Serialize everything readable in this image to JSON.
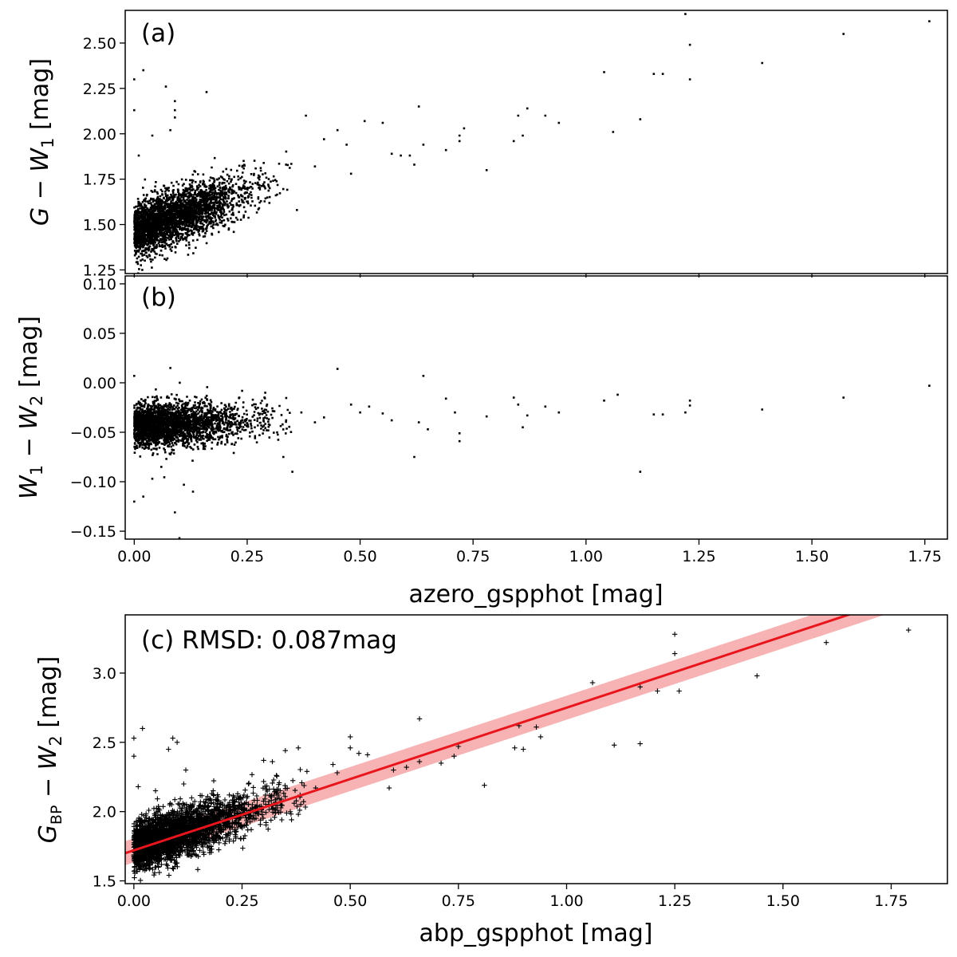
{
  "chart_data": [
    {
      "type": "scatter",
      "panel": "a",
      "label": "(a)",
      "ylabel": "G − W1 [mag]",
      "xlabel": "",
      "xlim": [
        -0.02,
        1.8
      ],
      "ylim": [
        1.23,
        2.68
      ],
      "xticks": [
        "0.00",
        "0.25",
        "0.50",
        "0.75",
        "1.00",
        "1.25",
        "1.50",
        "1.75"
      ],
      "yticks": [
        "1.25",
        "1.50",
        "1.75",
        "2.00",
        "2.25",
        "2.50"
      ],
      "bulk": {
        "x_range": [
          0,
          0.35
        ],
        "y_base": 1.46,
        "y_slope": 0.9,
        "scatter": 0.07,
        "count": 3200
      },
      "points": [
        [
          1.76,
          2.62
        ],
        [
          1.57,
          2.55
        ],
        [
          1.22,
          2.66
        ],
        [
          1.23,
          2.49
        ],
        [
          1.23,
          2.3
        ],
        [
          1.15,
          2.33
        ],
        [
          1.17,
          2.33
        ],
        [
          1.39,
          2.39
        ],
        [
          1.04,
          2.34
        ],
        [
          1.06,
          2.01
        ],
        [
          1.12,
          2.08
        ],
        [
          0.94,
          2.06
        ],
        [
          0.91,
          2.1
        ],
        [
          0.87,
          2.14
        ],
        [
          0.85,
          2.1
        ],
        [
          0.84,
          1.96
        ],
        [
          0.86,
          1.99
        ],
        [
          0.78,
          1.8
        ],
        [
          0.72,
          1.96
        ],
        [
          0.72,
          1.99
        ],
        [
          0.73,
          2.03
        ],
        [
          0.69,
          1.91
        ],
        [
          0.63,
          2.15
        ],
        [
          0.64,
          1.94
        ],
        [
          0.61,
          1.88
        ],
        [
          0.62,
          1.83
        ],
        [
          0.57,
          1.89
        ],
        [
          0.59,
          1.88
        ],
        [
          0.55,
          2.06
        ],
        [
          0.51,
          2.07
        ],
        [
          0.48,
          1.78
        ],
        [
          0.47,
          1.94
        ],
        [
          0.45,
          2.02
        ],
        [
          0.42,
          1.97
        ],
        [
          0.4,
          1.82
        ],
        [
          0.38,
          2.1
        ],
        [
          0.36,
          1.58
        ],
        [
          0.02,
          2.35
        ],
        [
          0.0,
          2.3
        ],
        [
          0.0,
          2.13
        ],
        [
          0.07,
          2.26
        ],
        [
          0.09,
          2.18
        ],
        [
          0.09,
          2.13
        ],
        [
          0.09,
          2.09
        ],
        [
          0.16,
          2.23
        ],
        [
          0.01,
          1.88
        ],
        [
          0.04,
          1.99
        ],
        [
          0.08,
          2.02
        ]
      ]
    },
    {
      "type": "scatter",
      "panel": "b",
      "label": "(b)",
      "ylabel": "W1 − W2 [mag]",
      "xlabel": "azero_gspphot [mag]",
      "xlim": [
        -0.02,
        1.8
      ],
      "ylim": [
        -0.158,
        0.108
      ],
      "xticks": [
        "0.00",
        "0.25",
        "0.50",
        "0.75",
        "1.00",
        "1.25",
        "1.50",
        "1.75"
      ],
      "yticks": [
        "-0.15",
        "-0.10",
        "-0.05",
        "0.00",
        "0.05",
        "0.10"
      ],
      "bulk": {
        "x_range": [
          0,
          0.35
        ],
        "y_base": -0.044,
        "y_slope": 0.02,
        "scatter": 0.011,
        "count": 3200
      },
      "points": [
        [
          1.76,
          -0.003
        ],
        [
          1.57,
          -0.015
        ],
        [
          1.39,
          -0.027
        ],
        [
          1.23,
          -0.018
        ],
        [
          1.23,
          -0.023
        ],
        [
          1.22,
          -0.03
        ],
        [
          1.17,
          -0.032
        ],
        [
          1.15,
          -0.032
        ],
        [
          1.12,
          -0.09
        ],
        [
          1.07,
          -0.012
        ],
        [
          1.04,
          -0.018
        ],
        [
          0.94,
          -0.03
        ],
        [
          0.91,
          -0.024
        ],
        [
          0.87,
          -0.033
        ],
        [
          0.86,
          -0.045
        ],
        [
          0.84,
          -0.015
        ],
        [
          0.85,
          -0.022
        ],
        [
          0.78,
          -0.034
        ],
        [
          0.72,
          -0.051
        ],
        [
          0.72,
          -0.059
        ],
        [
          0.71,
          -0.03
        ],
        [
          0.69,
          -0.016
        ],
        [
          0.64,
          0.007
        ],
        [
          0.65,
          -0.047
        ],
        [
          0.62,
          -0.075
        ],
        [
          0.63,
          -0.04
        ],
        [
          0.57,
          -0.038
        ],
        [
          0.55,
          -0.031
        ],
        [
          0.52,
          -0.024
        ],
        [
          0.5,
          -0.03
        ],
        [
          0.48,
          -0.022
        ],
        [
          0.45,
          0.014
        ],
        [
          0.42,
          -0.035
        ],
        [
          0.4,
          -0.04
        ],
        [
          0.37,
          -0.03
        ],
        [
          0.35,
          -0.09
        ],
        [
          0.33,
          -0.075
        ],
        [
          0.29,
          -0.01
        ],
        [
          0.0,
          -0.12
        ],
        [
          0.02,
          -0.115
        ],
        [
          0.09,
          -0.131
        ],
        [
          0.1,
          -0.157
        ],
        [
          0.15,
          -0.16
        ],
        [
          0.13,
          -0.11
        ],
        [
          0.08,
          0.015
        ],
        [
          0.0,
          0.007
        ],
        [
          0.04,
          -0.097
        ],
        [
          0.11,
          -0.103
        ],
        [
          0.06,
          -0.085
        ]
      ]
    },
    {
      "type": "scatter",
      "panel": "c",
      "label": "(c) RMSD: 0.087mag",
      "ylabel": "GBP − W2 [mag]",
      "xlabel": "abp_gspphot [mag]",
      "xlim": [
        -0.02,
        1.88
      ],
      "ylim": [
        1.48,
        3.42
      ],
      "xticks": [
        "0.00",
        "0.25",
        "0.50",
        "0.75",
        "1.00",
        "1.25",
        "1.50",
        "1.75"
      ],
      "yticks": [
        "1.5",
        "2.0",
        "2.5",
        "3.0"
      ],
      "fit": {
        "intercept": 1.72,
        "slope": 1.03,
        "band": 0.087,
        "color": "#e8161c",
        "band_color": "#f6a4a6"
      },
      "bulk": {
        "x_range": [
          0,
          0.4
        ],
        "y_base": 1.74,
        "y_slope": 1.0,
        "scatter": 0.09,
        "count": 3200
      },
      "points": [
        [
          1.79,
          3.31
        ],
        [
          1.6,
          3.22
        ],
        [
          1.44,
          2.98
        ],
        [
          1.26,
          2.87
        ],
        [
          1.25,
          3.28
        ],
        [
          1.25,
          3.14
        ],
        [
          1.21,
          2.87
        ],
        [
          1.17,
          2.9
        ],
        [
          1.17,
          2.49
        ],
        [
          1.11,
          2.48
        ],
        [
          1.06,
          2.93
        ],
        [
          0.93,
          2.61
        ],
        [
          0.94,
          2.54
        ],
        [
          0.89,
          2.62
        ],
        [
          0.88,
          2.46
        ],
        [
          0.9,
          2.45
        ],
        [
          0.81,
          2.19
        ],
        [
          0.75,
          2.47
        ],
        [
          0.74,
          2.4
        ],
        [
          0.71,
          2.35
        ],
        [
          0.66,
          2.67
        ],
        [
          0.66,
          2.36
        ],
        [
          0.63,
          2.32
        ],
        [
          0.6,
          2.3
        ],
        [
          0.59,
          2.17
        ],
        [
          0.54,
          2.41
        ],
        [
          0.52,
          2.42
        ],
        [
          0.5,
          2.46
        ],
        [
          0.5,
          2.54
        ],
        [
          0.47,
          2.28
        ],
        [
          0.46,
          2.34
        ],
        [
          0.42,
          2.17
        ],
        [
          0.4,
          2.29
        ],
        [
          0.38,
          2.46
        ],
        [
          0.38,
          1.98
        ],
        [
          0.35,
          2.44
        ],
        [
          0.32,
          2.36
        ],
        [
          0.3,
          2.37
        ],
        [
          0.02,
          2.6
        ],
        [
          0.0,
          2.53
        ],
        [
          0.0,
          2.4
        ],
        [
          0.08,
          2.45
        ],
        [
          0.09,
          2.53
        ],
        [
          0.1,
          2.5
        ],
        [
          0.01,
          2.18
        ],
        [
          0.05,
          2.15
        ],
        [
          0.12,
          2.3
        ]
      ]
    }
  ]
}
